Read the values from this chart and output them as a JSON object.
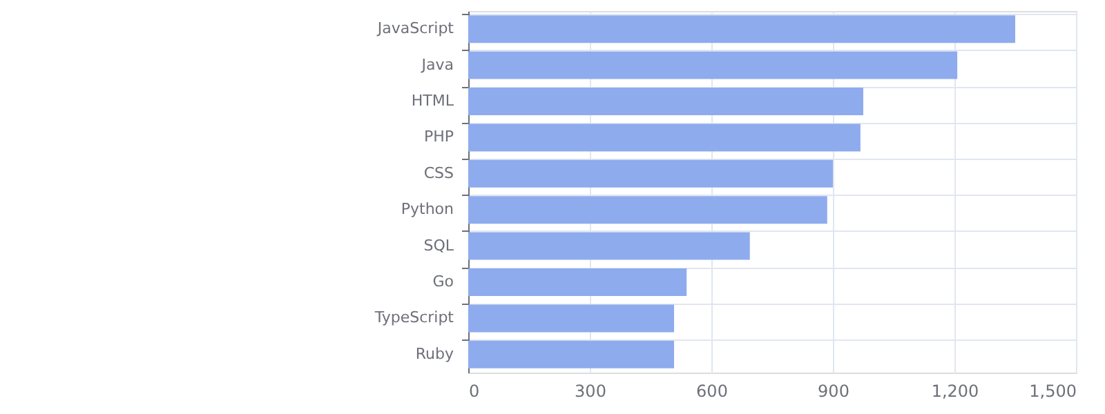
{
  "chart_data": {
    "type": "bar",
    "orientation": "horizontal",
    "categories": [
      "JavaScript",
      "Java",
      "HTML",
      "PHP",
      "CSS",
      "Python",
      "SQL",
      "Go",
      "TypeScript",
      "Ruby"
    ],
    "values": [
      1350,
      1207,
      975,
      968,
      900,
      886,
      695,
      539,
      508,
      508
    ],
    "color": "#8eabee",
    "xlim": [
      0,
      1500
    ],
    "xticks": [
      0,
      300,
      600,
      900,
      {
        "value": 1200,
        "label": "1,200"
      },
      {
        "value": 1500,
        "label": "1,500"
      }
    ],
    "grid": true
  }
}
